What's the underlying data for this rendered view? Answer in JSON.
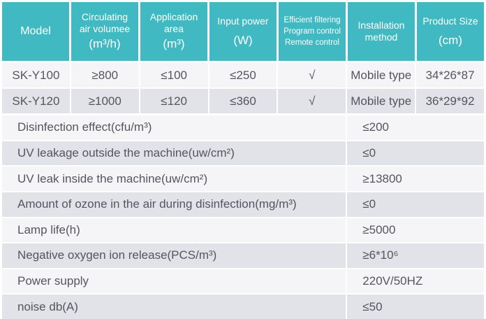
{
  "colors": {
    "header_bg": "#41b9c2",
    "header_text": "#ffffff",
    "row_light": "#f5f5f8",
    "row_dark": "#e2e2e9",
    "body_text": "#55555e"
  },
  "header": {
    "columns": [
      {
        "lines": [
          "Model"
        ]
      },
      {
        "lines": [
          "Circulating",
          "air volumee",
          "(m³/h)"
        ]
      },
      {
        "lines": [
          "Application",
          "area",
          "(m³)"
        ]
      },
      {
        "lines": [
          "Input power",
          "(W)"
        ]
      },
      {
        "lines": [
          "Efficient filtering",
          "Program control",
          "Remote control"
        ]
      },
      {
        "lines": [
          "Installation",
          "method"
        ]
      },
      {
        "lines": [
          "Product Size",
          "(cm)"
        ]
      }
    ]
  },
  "table": {
    "model_rows": [
      [
        "SK-Y100",
        "≥800",
        "≤100",
        "≤250",
        "√",
        "Mobile type",
        "34*26*87"
      ],
      [
        "SK-Y120",
        "≥1000",
        "≤120",
        "≤360",
        "√",
        "Mobile type",
        "36*29*92"
      ]
    ],
    "spec_rows": [
      {
        "label": "Disinfection effect(cfu/m³)",
        "value": "≤200"
      },
      {
        "label": "UV leakage outside the machine(uw/cm²)",
        "value": "≤0"
      },
      {
        "label": "UV leak inside the machine(uw/cm²)",
        "value": "≥13800"
      },
      {
        "label": "Amount of ozone in the air during disinfection(mg/m³)",
        "value": "≤0"
      },
      {
        "label": "Lamp life(h)",
        "value": "≥5000"
      },
      {
        "label": "Negative oxygen ion release(PCS/m³)",
        "value": "≥6*10⁶"
      },
      {
        "label": "Power supply",
        "value": "220V/50HZ"
      },
      {
        "label": "noise db(A)",
        "value": "≤50"
      }
    ]
  }
}
